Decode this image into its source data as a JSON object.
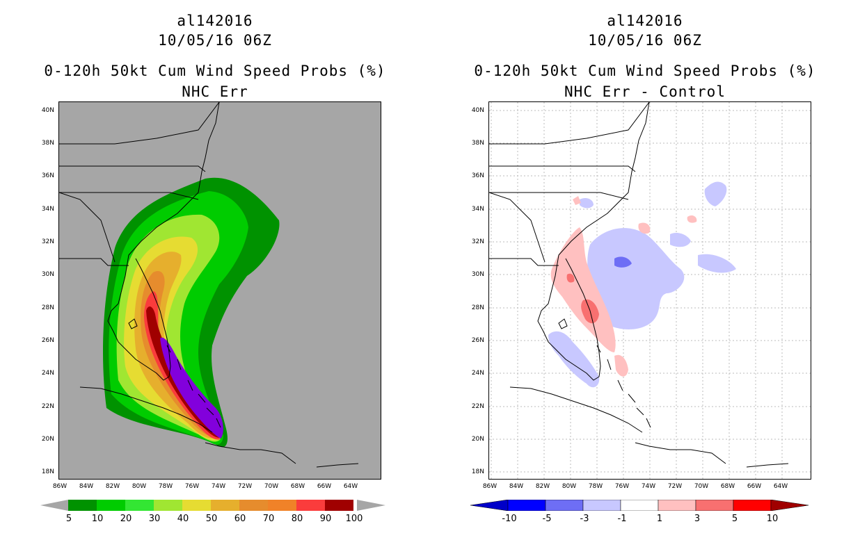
{
  "left": {
    "storm_id": "al142016",
    "datetime": "10/05/16 06Z",
    "product": "0-120h 50kt Cum Wind Speed Probs (%)",
    "subtitle": "NHC Err",
    "colorbar": {
      "labels": [
        "5",
        "10",
        "20",
        "30",
        "40",
        "50",
        "60",
        "70",
        "80",
        "90",
        "100"
      ],
      "colors": [
        "#009200",
        "#00cc00",
        "#33e633",
        "#a0e632",
        "#e6dc32",
        "#e6af2d",
        "#e68c2d",
        "#f08228",
        "#fa3c3c",
        "#a00000",
        "#8200dc"
      ]
    }
  },
  "right": {
    "storm_id": "al142016",
    "datetime": "10/05/16 06Z",
    "product": "0-120h 50kt Cum Wind Speed Probs (%)",
    "subtitle": "NHC Err - Control",
    "colorbar": {
      "labels": [
        "-10",
        "-5",
        "-3",
        "-1",
        "1",
        "3",
        "5",
        "10"
      ],
      "colors": [
        "#0000c8",
        "#0000ff",
        "#6e6ef5",
        "#c8c8ff",
        "#ffffff",
        "#ffc0c0",
        "#f87070",
        "#ff0000",
        "#a00000"
      ]
    }
  },
  "axes": {
    "lat_labels": [
      "40N",
      "38N",
      "36N",
      "34N",
      "32N",
      "30N",
      "28N",
      "26N",
      "24N",
      "22N",
      "20N",
      "18N"
    ],
    "lon_labels": [
      "86W",
      "84W",
      "82W",
      "80W",
      "78W",
      "76W",
      "74W",
      "72W",
      "70W",
      "68W",
      "66W",
      "64W"
    ]
  },
  "colors": {
    "ocean_left": "#a6a6a6",
    "map_lines": "#000000",
    "grid_right": "#bbbbbb"
  }
}
